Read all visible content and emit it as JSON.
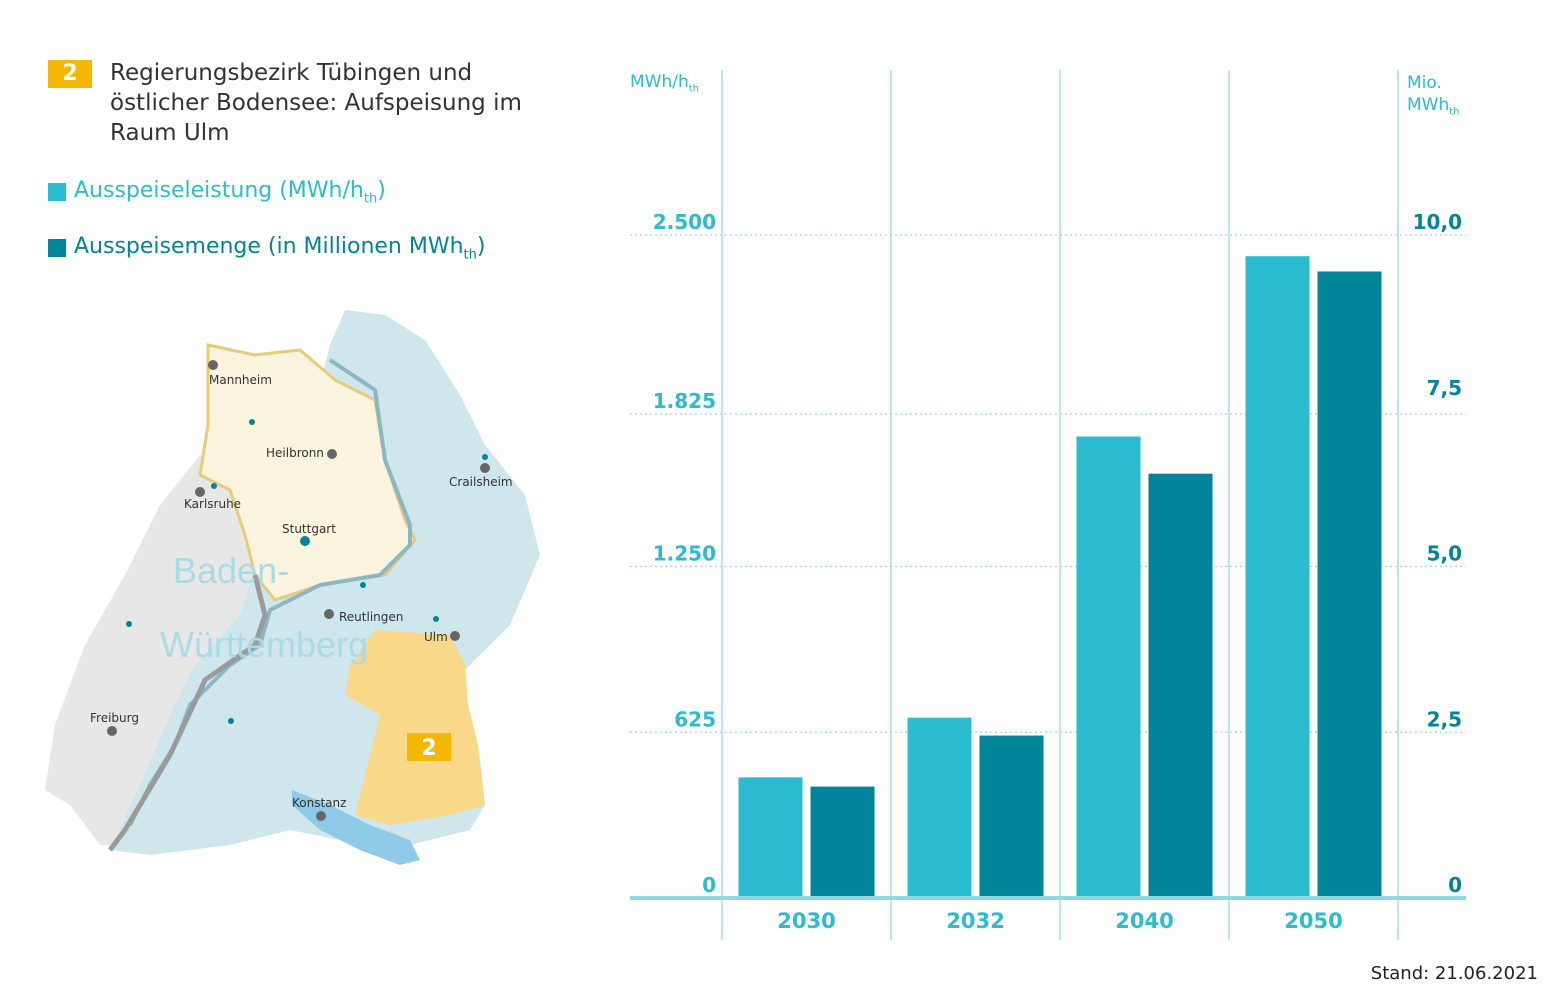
{
  "header": {
    "badge": "2",
    "title": "Regierungsbezirk Tübingen und östlicher Bodensee: Aufspeisung im Raum Ulm"
  },
  "legend": {
    "light_label": "Ausspeiseleistung (MWh/h",
    "light_sub": "th",
    "light_close": ")",
    "dark_label": "Ausspeisemenge (in Millionen MWh",
    "dark_sub": "th",
    "dark_close": ")"
  },
  "colors": {
    "light": "#2bbcd0",
    "dark": "#00849a",
    "badge": "#f5b800",
    "map_blue": "#cfe6ec",
    "map_cream": "#faf4df",
    "map_gray": "#e7e7e7",
    "map_yellow": "#f9d88a",
    "lake": "#8fcbe8"
  },
  "map": {
    "state_label_1": "Baden-",
    "state_label_2": "Württemberg",
    "region_badge": "2",
    "cities": [
      "Mannheim",
      "Heilbronn",
      "Crailsheim",
      "Karlsruhe",
      "Stuttgart",
      "Reutlingen",
      "Ulm",
      "Freiburg",
      "Konstanz"
    ]
  },
  "chart_data": {
    "type": "bar",
    "categories": [
      "2030",
      "2032",
      "2040",
      "2050"
    ],
    "series": [
      {
        "name": "Ausspeiseleistung (MWh/hth)",
        "axis": "left",
        "values": [
          455,
          680,
          1740,
          2420
        ]
      },
      {
        "name": "Ausspeisemenge (in Millionen MWhth)",
        "axis": "right",
        "values": [
          1.68,
          2.45,
          6.4,
          9.45
        ]
      }
    ],
    "y_left": {
      "unit": "MWh/h",
      "unit_sub": "th",
      "range": [
        0,
        2500
      ],
      "ticks": [
        0,
        625,
        1250,
        1825,
        2500
      ],
      "tick_labels": [
        "0",
        "625",
        "1.250",
        "1.825",
        "2.500"
      ]
    },
    "y_right": {
      "unit_line1": "Mio.",
      "unit_line2": "MWh",
      "unit_sub": "th",
      "range": [
        0,
        10
      ],
      "ticks": [
        0,
        2.5,
        5,
        7.5,
        10
      ],
      "tick_labels": [
        "0",
        "2,5",
        "5,0",
        "7,5",
        "10,0"
      ]
    },
    "grid": true
  },
  "footer": {
    "stand": "Stand: 21.06.2021"
  }
}
